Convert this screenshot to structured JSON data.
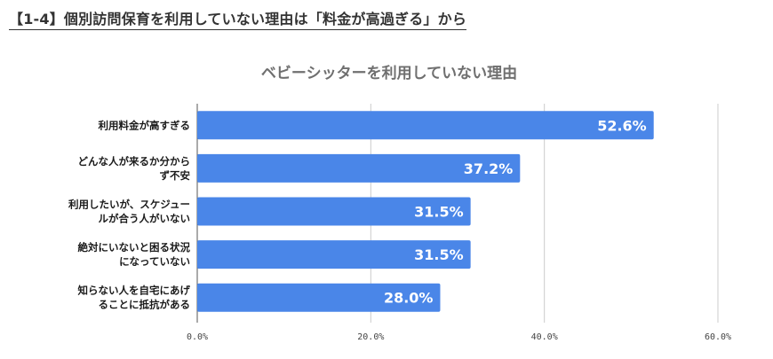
{
  "page_heading": "【1-4】個別訪問保育を利用していない理由は「料金が高過ぎる」から",
  "chart_data": {
    "type": "bar",
    "orientation": "horizontal",
    "title": "ベビーシッターを利用していない理由",
    "categories": [
      [
        "利用料金が高すぎる"
      ],
      [
        "どんな人が来るか分から",
        "ず不安"
      ],
      [
        "利用したいが、スケジュー",
        "ルが合う人がいない"
      ],
      [
        "絶対にいないと困る状況",
        "になっていない"
      ],
      [
        "知らない人を自宅にあげ",
        "ることに抵抗がある"
      ]
    ],
    "values": [
      52.6,
      37.2,
      31.5,
      31.5,
      28.0
    ],
    "data_labels": [
      "52.6%",
      "37.2%",
      "31.5%",
      "31.5%",
      "28.0%"
    ],
    "xlim": [
      0,
      60
    ],
    "x_ticks": [
      0,
      20,
      40,
      60
    ],
    "x_tick_labels": [
      "0.0%",
      "20.0%",
      "40.0%",
      "60.0%"
    ],
    "grid": true,
    "legend": "none",
    "colors": {
      "bar": "#4a86e8",
      "grid": "#cccccc",
      "title": "#6f6f6f"
    }
  }
}
